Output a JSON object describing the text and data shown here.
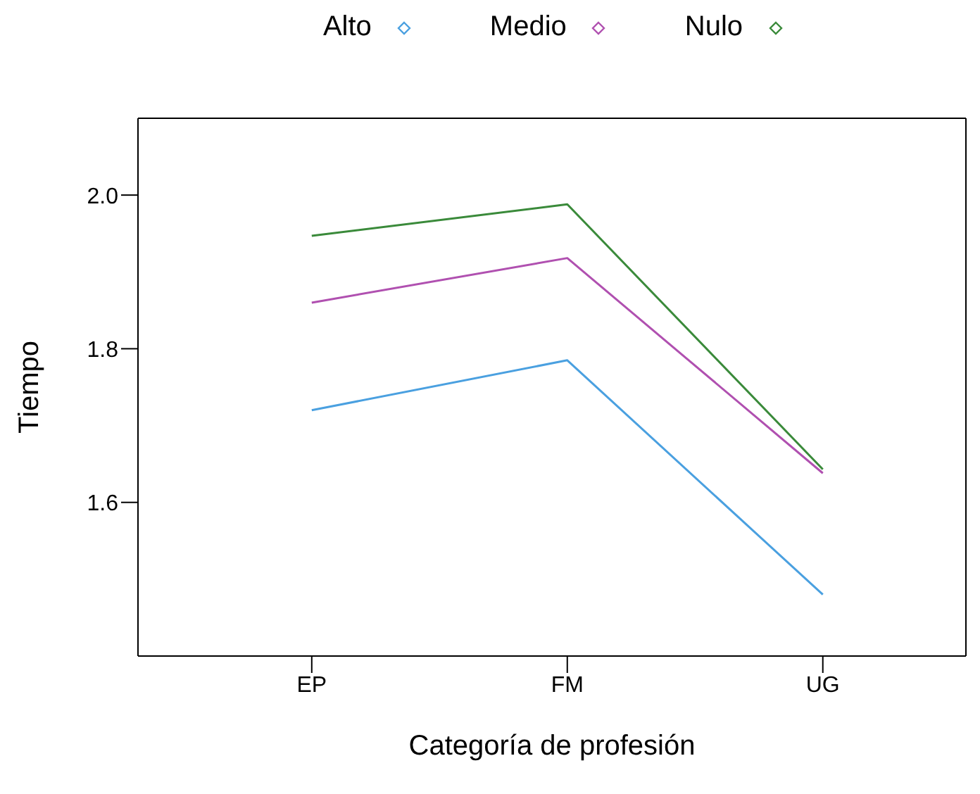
{
  "chart_data": {
    "type": "line",
    "xlabel": "Categoría de profesión",
    "ylabel": "Tiempo",
    "categories": [
      "EP",
      "FM",
      "UG"
    ],
    "series": [
      {
        "name": "Alto",
        "color": "#4aa0e0",
        "values": [
          1.72,
          1.785,
          1.48
        ]
      },
      {
        "name": "Medio",
        "color": "#b050b0",
        "values": [
          1.86,
          1.918,
          1.638
        ]
      },
      {
        "name": "Nulo",
        "color": "#3a8a3a",
        "values": [
          1.947,
          1.988,
          1.643
        ]
      }
    ],
    "ylim": [
      1.4,
      2.1
    ],
    "yticks": [
      1.6,
      1.8,
      {
        "value": 2.0,
        "label": "2.0"
      }
    ],
    "legend": "top",
    "marker": "none",
    "line_style": "solid"
  }
}
